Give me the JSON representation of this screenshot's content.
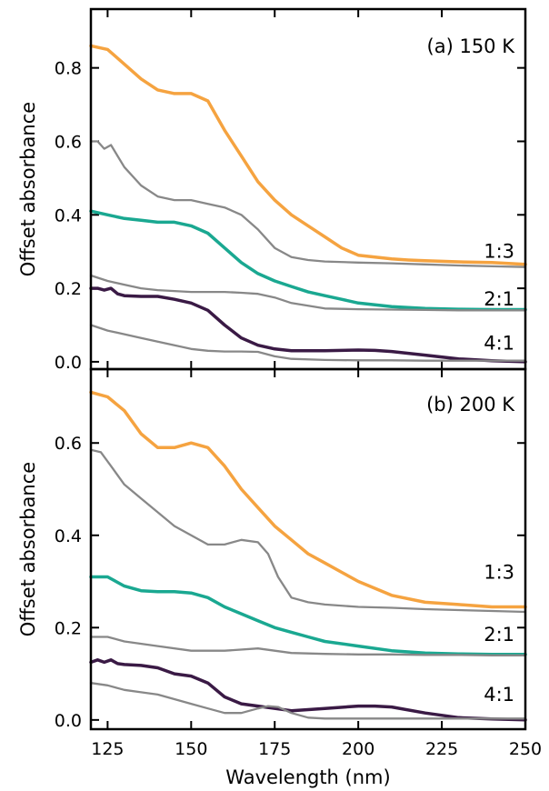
{
  "figure": {
    "xlabel": "Wavelength (nm)",
    "ylabel_top": "Offset absorbance",
    "ylabel_bottom": "Offset absorbance"
  },
  "chart_data": [
    {
      "type": "line",
      "panel_label": "(a) 150 K",
      "xlabel": "Wavelength (nm)",
      "ylabel": "Offset absorbance",
      "xlim": [
        120,
        250
      ],
      "ylim": [
        -0.02,
        0.96
      ],
      "xticks": [
        125,
        150,
        175,
        200,
        225,
        250
      ],
      "yticks": [
        0.0,
        0.2,
        0.4,
        0.6,
        0.8
      ],
      "ytick_labels": [
        "0.0",
        "0.2",
        "0.4",
        "0.6",
        "0.8"
      ],
      "grid": false,
      "series_labels": [
        {
          "text": "1:3",
          "y": 0.3
        },
        {
          "text": "2:1",
          "y": 0.17
        },
        {
          "text": "4:1",
          "y": 0.05
        }
      ],
      "series": [
        {
          "label": "1:3 (measured)",
          "color": "#f5a340",
          "width": 3.5,
          "x": [
            120,
            125,
            130,
            135,
            140,
            145,
            150,
            155,
            160,
            165,
            170,
            175,
            180,
            185,
            190,
            195,
            200,
            205,
            210,
            215,
            220,
            230,
            240,
            250
          ],
          "y": [
            0.86,
            0.85,
            0.81,
            0.77,
            0.74,
            0.73,
            0.73,
            0.71,
            0.63,
            0.56,
            0.49,
            0.44,
            0.4,
            0.37,
            0.34,
            0.31,
            0.29,
            0.285,
            0.28,
            0.277,
            0.275,
            0.272,
            0.27,
            0.265
          ]
        },
        {
          "label": "1:3 (gray)",
          "color": "#888888",
          "width": 2.3,
          "x": [
            120,
            122,
            124,
            126,
            128,
            130,
            135,
            140,
            145,
            150,
            155,
            160,
            165,
            170,
            175,
            180,
            185,
            190,
            200,
            210,
            220,
            230,
            240,
            250
          ],
          "y": [
            0.6,
            0.6,
            0.58,
            0.59,
            0.56,
            0.53,
            0.48,
            0.45,
            0.44,
            0.44,
            0.43,
            0.42,
            0.4,
            0.36,
            0.31,
            0.285,
            0.277,
            0.273,
            0.27,
            0.268,
            0.265,
            0.262,
            0.26,
            0.258
          ]
        },
        {
          "label": "2:1 (measured)",
          "color": "#1aa891",
          "width": 3.5,
          "x": [
            120,
            125,
            130,
            135,
            140,
            145,
            150,
            155,
            160,
            165,
            170,
            175,
            180,
            185,
            190,
            195,
            200,
            210,
            220,
            230,
            240,
            250
          ],
          "y": [
            0.41,
            0.4,
            0.39,
            0.385,
            0.38,
            0.38,
            0.37,
            0.35,
            0.31,
            0.27,
            0.24,
            0.22,
            0.205,
            0.19,
            0.18,
            0.17,
            0.16,
            0.15,
            0.145,
            0.143,
            0.142,
            0.142
          ]
        },
        {
          "label": "2:1 (gray)",
          "color": "#888888",
          "width": 2.3,
          "x": [
            120,
            125,
            130,
            135,
            140,
            150,
            160,
            165,
            170,
            175,
            180,
            190,
            200,
            210,
            220,
            230,
            240,
            250
          ],
          "y": [
            0.235,
            0.22,
            0.21,
            0.2,
            0.195,
            0.19,
            0.19,
            0.188,
            0.185,
            0.175,
            0.16,
            0.145,
            0.143,
            0.142,
            0.141,
            0.14,
            0.14,
            0.14
          ]
        },
        {
          "label": "4:1 (measured)",
          "color": "#3a1a45",
          "width": 3.5,
          "x": [
            120,
            122,
            124,
            126,
            128,
            130,
            135,
            140,
            145,
            150,
            155,
            160,
            165,
            170,
            175,
            180,
            190,
            200,
            205,
            210,
            220,
            230,
            240,
            250
          ],
          "y": [
            0.2,
            0.2,
            0.195,
            0.2,
            0.185,
            0.18,
            0.178,
            0.178,
            0.17,
            0.16,
            0.14,
            0.1,
            0.065,
            0.045,
            0.035,
            0.03,
            0.03,
            0.032,
            0.031,
            0.028,
            0.018,
            0.008,
            0.003,
            0.0
          ]
        },
        {
          "label": "4:1 (gray)",
          "color": "#888888",
          "width": 2.3,
          "x": [
            120,
            125,
            130,
            135,
            140,
            145,
            150,
            155,
            160,
            165,
            170,
            175,
            180,
            190,
            200,
            210,
            220,
            230,
            240,
            250
          ],
          "y": [
            0.1,
            0.085,
            0.075,
            0.065,
            0.055,
            0.045,
            0.035,
            0.03,
            0.028,
            0.028,
            0.027,
            0.015,
            0.008,
            0.005,
            0.004,
            0.004,
            0.003,
            0.003,
            0.003,
            0.003
          ]
        }
      ]
    },
    {
      "type": "line",
      "panel_label": "(b) 200 K",
      "xlabel": "Wavelength (nm)",
      "ylabel": "Offset absorbance",
      "xlim": [
        120,
        250
      ],
      "ylim": [
        -0.02,
        0.76
      ],
      "xticks": [
        125,
        150,
        175,
        200,
        225,
        250
      ],
      "xtick_labels": [
        "125",
        "150",
        "175",
        "200",
        "225",
        "250"
      ],
      "yticks": [
        0.0,
        0.2,
        0.4,
        0.6
      ],
      "ytick_labels": [
        "0.0",
        "0.2",
        "0.4",
        "0.6"
      ],
      "grid": false,
      "series_labels": [
        {
          "text": "1:3",
          "y": 0.32
        },
        {
          "text": "2:1",
          "y": 0.185
        },
        {
          "text": "4:1",
          "y": 0.055
        }
      ],
      "series": [
        {
          "label": "1:3 (measured)",
          "color": "#f5a340",
          "width": 3.5,
          "x": [
            120,
            125,
            130,
            135,
            140,
            145,
            150,
            155,
            160,
            165,
            170,
            175,
            180,
            185,
            190,
            195,
            200,
            210,
            220,
            230,
            240,
            250
          ],
          "y": [
            0.71,
            0.7,
            0.67,
            0.62,
            0.59,
            0.59,
            0.6,
            0.59,
            0.55,
            0.5,
            0.46,
            0.42,
            0.39,
            0.36,
            0.34,
            0.32,
            0.3,
            0.27,
            0.255,
            0.25,
            0.245,
            0.245
          ]
        },
        {
          "label": "1:3 (gray)",
          "color": "#888888",
          "width": 2.3,
          "x": [
            120,
            123,
            126,
            130,
            135,
            140,
            145,
            150,
            155,
            157,
            160,
            165,
            170,
            173,
            176,
            180,
            185,
            190,
            200,
            210,
            220,
            230,
            240,
            250
          ],
          "y": [
            0.585,
            0.58,
            0.55,
            0.51,
            0.48,
            0.45,
            0.42,
            0.4,
            0.38,
            0.38,
            0.38,
            0.39,
            0.385,
            0.36,
            0.31,
            0.265,
            0.255,
            0.25,
            0.245,
            0.243,
            0.24,
            0.238,
            0.236,
            0.234
          ]
        },
        {
          "label": "2:1 (measured)",
          "color": "#1aa891",
          "width": 3.5,
          "x": [
            120,
            125,
            130,
            135,
            140,
            145,
            150,
            155,
            160,
            165,
            170,
            175,
            180,
            185,
            190,
            200,
            210,
            220,
            230,
            240,
            250
          ],
          "y": [
            0.31,
            0.31,
            0.29,
            0.28,
            0.278,
            0.278,
            0.275,
            0.265,
            0.245,
            0.23,
            0.215,
            0.2,
            0.19,
            0.18,
            0.17,
            0.16,
            0.15,
            0.145,
            0.143,
            0.142,
            0.142
          ]
        },
        {
          "label": "2:1 (gray)",
          "color": "#888888",
          "width": 2.3,
          "x": [
            120,
            125,
            130,
            140,
            150,
            160,
            170,
            175,
            180,
            190,
            200,
            210,
            220,
            230,
            240,
            250
          ],
          "y": [
            0.18,
            0.18,
            0.17,
            0.16,
            0.15,
            0.15,
            0.155,
            0.15,
            0.145,
            0.143,
            0.142,
            0.142,
            0.141,
            0.141,
            0.14,
            0.14
          ]
        },
        {
          "label": "4:1 (measured)",
          "color": "#3a1a45",
          "width": 3.5,
          "x": [
            120,
            122,
            124,
            126,
            128,
            130,
            135,
            140,
            145,
            150,
            155,
            160,
            165,
            170,
            175,
            180,
            190,
            200,
            205,
            210,
            220,
            230,
            240,
            250
          ],
          "y": [
            0.125,
            0.13,
            0.125,
            0.13,
            0.122,
            0.12,
            0.118,
            0.113,
            0.1,
            0.095,
            0.08,
            0.05,
            0.035,
            0.03,
            0.025,
            0.02,
            0.025,
            0.03,
            0.03,
            0.028,
            0.015,
            0.005,
            0.002,
            0.0
          ]
        },
        {
          "label": "4:1 (gray)",
          "color": "#888888",
          "width": 2.3,
          "x": [
            120,
            125,
            130,
            135,
            140,
            145,
            150,
            155,
            160,
            165,
            170,
            173,
            176,
            180,
            185,
            190,
            200,
            210,
            220,
            230,
            240,
            250
          ],
          "y": [
            0.08,
            0.075,
            0.065,
            0.06,
            0.055,
            0.045,
            0.035,
            0.025,
            0.015,
            0.015,
            0.025,
            0.03,
            0.028,
            0.015,
            0.005,
            0.003,
            0.003,
            0.003,
            0.003,
            0.003,
            0.003,
            0.003
          ]
        }
      ]
    }
  ]
}
